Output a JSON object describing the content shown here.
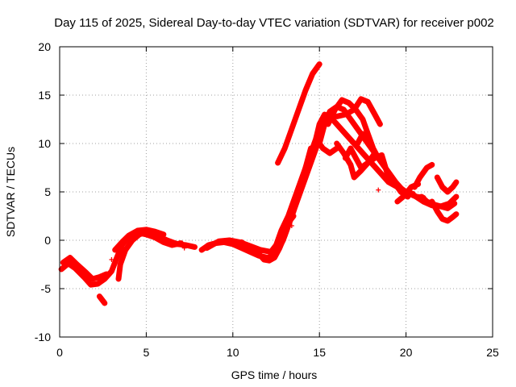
{
  "chart_data": {
    "type": "scatter",
    "title": "Day 115 of 2025, Sidereal Day-to-day VTEC variation (SDTVAR) for receiver p002",
    "xlabel": "GPS time / hours",
    "ylabel": "SDTVAR / TECUs",
    "xlim": [
      0,
      25
    ],
    "ylim": [
      -10,
      20
    ],
    "xticks": [
      0,
      5,
      10,
      15,
      20,
      25
    ],
    "yticks": [
      -10,
      -5,
      0,
      5,
      10,
      15,
      20
    ],
    "grid": true,
    "marker": "plus",
    "series": [
      {
        "name": "SDTVAR",
        "color": "#ff0000",
        "tracks": [
          [
            [
              0.1,
              -3.0
            ],
            [
              0.5,
              -2.4
            ],
            [
              0.9,
              -2.9
            ],
            [
              1.4,
              -3.8
            ],
            [
              1.8,
              -4.6
            ],
            [
              2.2,
              -4.5
            ],
            [
              2.6,
              -4.0
            ],
            [
              3.0,
              -3.2
            ],
            [
              3.3,
              -1.8
            ],
            [
              3.6,
              -0.5
            ],
            [
              4.0,
              0.4
            ],
            [
              4.5,
              0.8
            ],
            [
              5.0,
              0.6
            ],
            [
              5.5,
              0.3
            ],
            [
              6.0,
              -0.2
            ],
            [
              6.5,
              -0.5
            ],
            [
              7.0,
              -0.3
            ]
          ],
          [
            [
              0.2,
              -2.3
            ],
            [
              0.6,
              -1.8
            ],
            [
              1.0,
              -2.5
            ],
            [
              1.5,
              -3.3
            ],
            [
              1.9,
              -4.0
            ],
            [
              2.3,
              -3.8
            ],
            [
              2.7,
              -3.5
            ]
          ],
          [
            [
              2.3,
              -5.8
            ],
            [
              2.6,
              -6.5
            ]
          ],
          [
            [
              3.4,
              -4.0
            ],
            [
              3.5,
              -2.5
            ],
            [
              3.8,
              -1.0
            ],
            [
              4.2,
              0.0
            ],
            [
              4.6,
              0.6
            ],
            [
              5.1,
              0.9
            ],
            [
              5.6,
              0.5
            ],
            [
              6.2,
              0.0
            ],
            [
              6.8,
              -0.4
            ],
            [
              7.3,
              -0.5
            ],
            [
              7.8,
              -0.7
            ]
          ],
          [
            [
              3.2,
              -1.0
            ],
            [
              3.6,
              -0.2
            ],
            [
              4.0,
              0.5
            ],
            [
              4.5,
              1.0
            ],
            [
              5.0,
              1.1
            ],
            [
              5.5,
              0.9
            ],
            [
              6.0,
              0.6
            ]
          ],
          [
            [
              8.2,
              -1.0
            ],
            [
              8.6,
              -0.5
            ],
            [
              9.0,
              -0.3
            ],
            [
              9.5,
              -0.2
            ],
            [
              10.0,
              -0.4
            ],
            [
              10.5,
              -0.8
            ],
            [
              11.0,
              -1.2
            ],
            [
              11.5,
              -1.6
            ],
            [
              12.0,
              -1.8
            ],
            [
              12.3,
              -1.6
            ],
            [
              12.6,
              -1.0
            ],
            [
              12.9,
              0.0
            ],
            [
              13.2,
              1.5
            ],
            [
              13.5,
              3.0
            ],
            [
              13.9,
              5.5
            ],
            [
              14.2,
              7.5
            ],
            [
              14.5,
              9.5
            ]
          ],
          [
            [
              8.5,
              -0.8
            ],
            [
              9.2,
              -0.1
            ],
            [
              9.8,
              0.0
            ],
            [
              10.4,
              -0.2
            ],
            [
              11.0,
              -0.6
            ],
            [
              11.6,
              -1.0
            ],
            [
              12.2,
              -1.2
            ],
            [
              12.5,
              -0.5
            ],
            [
              12.8,
              1.0
            ],
            [
              13.2,
              2.5
            ],
            [
              13.6,
              4.5
            ],
            [
              14.0,
              6.5
            ],
            [
              14.4,
              8.5
            ],
            [
              14.8,
              10.5
            ],
            [
              15.0,
              12.0
            ],
            [
              15.3,
              13.0
            ],
            [
              15.6,
              12.8
            ],
            [
              16.0,
              12.0
            ],
            [
              16.5,
              11.0
            ],
            [
              17.0,
              10.0
            ],
            [
              17.5,
              9.0
            ],
            [
              18.0,
              8.0
            ],
            [
              18.5,
              7.0
            ],
            [
              19.0,
              6.0
            ],
            [
              19.5,
              5.5
            ],
            [
              20.0,
              5.0
            ],
            [
              20.5,
              4.6
            ],
            [
              21.0,
              4.0
            ],
            [
              21.5,
              3.6
            ],
            [
              22.0,
              3.5
            ],
            [
              22.5,
              3.8
            ],
            [
              22.9,
              4.5
            ]
          ],
          [
            [
              10.5,
              -0.2
            ],
            [
              11.0,
              -0.8
            ],
            [
              11.5,
              -1.4
            ],
            [
              11.8,
              -2.0
            ],
            [
              12.1,
              -2.1
            ],
            [
              12.4,
              -1.8
            ],
            [
              12.7,
              -0.8
            ],
            [
              13.0,
              0.5
            ],
            [
              13.3,
              2.0
            ],
            [
              13.7,
              4.0
            ],
            [
              14.1,
              6.0
            ],
            [
              14.5,
              8.0
            ],
            [
              14.9,
              10.0
            ]
          ],
          [
            [
              12.6,
              -0.3
            ],
            [
              12.9,
              1.0
            ],
            [
              13.2,
              1.8
            ],
            [
              13.5,
              2.5
            ]
          ],
          [
            [
              12.6,
              8.0
            ],
            [
              13.0,
              9.5
            ],
            [
              13.4,
              11.5
            ],
            [
              13.8,
              13.5
            ],
            [
              14.2,
              15.5
            ],
            [
              14.6,
              17.2
            ],
            [
              15.0,
              18.2
            ]
          ],
          [
            [
              15.0,
              10.0
            ],
            [
              15.3,
              12.0
            ],
            [
              15.6,
              13.3
            ],
            [
              16.0,
              13.8
            ],
            [
              16.4,
              13.5
            ],
            [
              16.8,
              12.5
            ],
            [
              17.2,
              11.5
            ],
            [
              17.6,
              10.5
            ],
            [
              18.0,
              9.5
            ],
            [
              18.4,
              8.5
            ],
            [
              18.8,
              7.5
            ],
            [
              19.2,
              6.5
            ],
            [
              19.6,
              5.5
            ],
            [
              20.0,
              5.0
            ],
            [
              20.4,
              4.8
            ]
          ],
          [
            [
              15.5,
              12.0
            ],
            [
              15.9,
              13.5
            ],
            [
              16.3,
              14.5
            ],
            [
              16.7,
              14.2
            ],
            [
              17.1,
              13.5
            ],
            [
              17.5,
              12.5
            ],
            [
              17.8,
              11.0
            ],
            [
              18.1,
              9.5
            ],
            [
              18.4,
              8.5
            ],
            [
              18.7,
              8.0
            ]
          ],
          [
            [
              16.0,
              12.8
            ],
            [
              16.5,
              13.0
            ],
            [
              17.0,
              13.5
            ],
            [
              17.4,
              14.6
            ],
            [
              17.8,
              14.3
            ],
            [
              18.2,
              13.0
            ],
            [
              18.5,
              12.0
            ]
          ],
          [
            [
              17.2,
              10.0
            ],
            [
              17.5,
              11.0
            ],
            [
              17.8,
              10.5
            ],
            [
              18.2,
              9.0
            ],
            [
              18.6,
              8.0
            ],
            [
              19.0,
              7.0
            ],
            [
              19.4,
              6.0
            ],
            [
              19.8,
              5.2
            ],
            [
              20.2,
              4.8
            ],
            [
              20.6,
              4.5
            ],
            [
              21.0,
              4.4
            ]
          ],
          [
            [
              16.5,
              8.5
            ],
            [
              16.8,
              9.5
            ],
            [
              17.1,
              8.5
            ],
            [
              17.4,
              7.5
            ],
            [
              17.8,
              8.0
            ],
            [
              18.2,
              8.5
            ],
            [
              18.6,
              8.8
            ],
            [
              18.9,
              7.0
            ],
            [
              19.3,
              6.0
            ],
            [
              19.7,
              5.0
            ],
            [
              20.1,
              4.5
            ]
          ],
          [
            [
              16.0,
              10.0
            ],
            [
              16.4,
              9.0
            ],
            [
              16.8,
              7.8
            ],
            [
              17.0,
              6.5
            ],
            [
              17.4,
              7.2
            ],
            [
              17.8,
              8.0
            ],
            [
              18.2,
              9.0
            ]
          ],
          [
            [
              14.8,
              10.5
            ],
            [
              15.2,
              9.5
            ],
            [
              15.6,
              9.0
            ],
            [
              16.0,
              9.5
            ]
          ],
          [
            [
              20.5,
              5.5
            ],
            [
              20.8,
              6.5
            ],
            [
              21.2,
              7.5
            ],
            [
              21.5,
              7.8
            ]
          ],
          [
            [
              20.9,
              4.5
            ],
            [
              21.2,
              4.0
            ],
            [
              21.6,
              3.7
            ],
            [
              22.0,
              3.5
            ],
            [
              22.4,
              3.3
            ],
            [
              22.8,
              3.8
            ]
          ],
          [
            [
              21.5,
              4.0
            ],
            [
              21.8,
              3.0
            ],
            [
              22.1,
              2.2
            ],
            [
              22.4,
              2.0
            ],
            [
              22.7,
              2.4
            ],
            [
              22.9,
              2.7
            ]
          ],
          [
            [
              21.8,
              6.5
            ],
            [
              22.1,
              5.5
            ],
            [
              22.4,
              5.0
            ],
            [
              22.7,
              5.5
            ],
            [
              22.9,
              6.0
            ]
          ],
          [
            [
              19.5,
              4.0
            ],
            [
              19.9,
              4.6
            ],
            [
              20.3,
              5.5
            ],
            [
              20.7,
              5.8
            ]
          ]
        ],
        "isolated_points": [
          [
            18.4,
            5.2
          ],
          [
            3.0,
            -2.0
          ],
          [
            7.2,
            -0.8
          ],
          [
            9.6,
            -0.2
          ],
          [
            13.4,
            1.5
          ]
        ]
      }
    ]
  }
}
